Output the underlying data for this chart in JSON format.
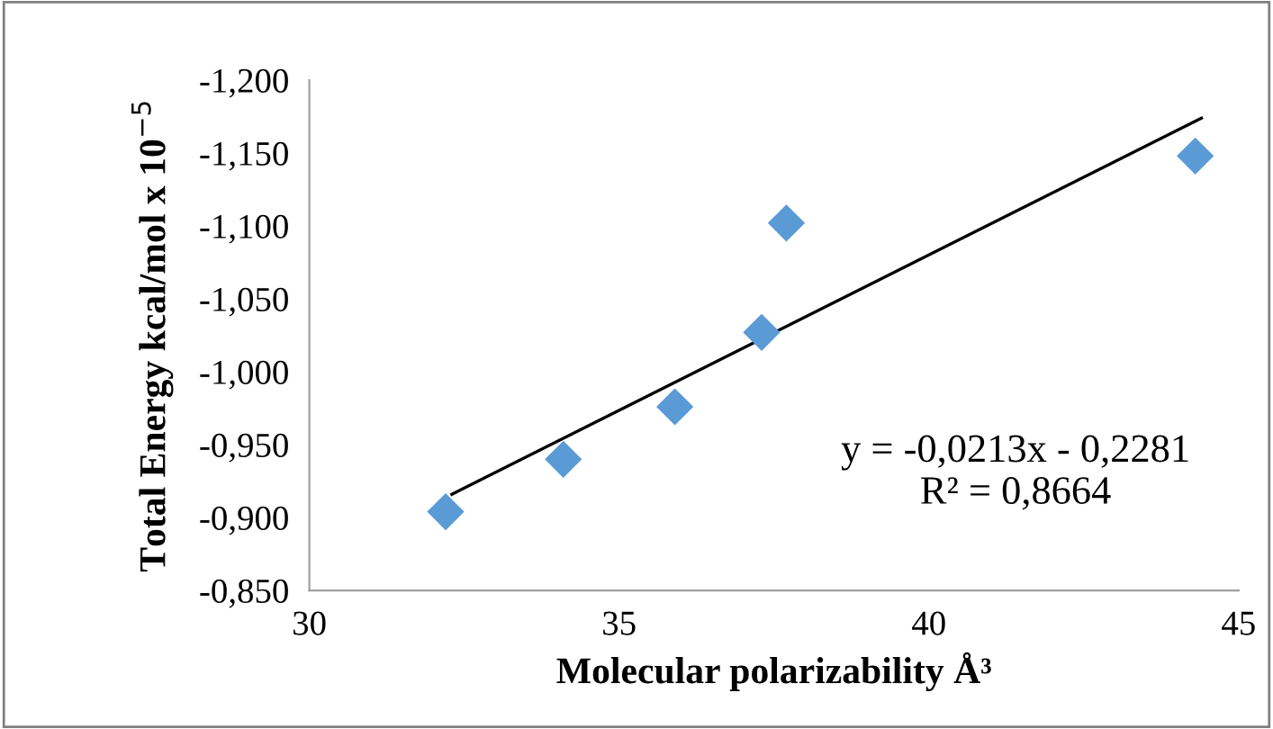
{
  "chart_data": {
    "type": "scatter",
    "xlabel": "Molecular polarizability Å³",
    "ylabel": "Total Energy kcal/mol x 10$^{−5}$",
    "xlim": [
      30,
      45
    ],
    "xticks": [
      30,
      35,
      40,
      45
    ],
    "ylim": [
      -0.85,
      -1.2
    ],
    "yticks": [
      {
        "value": -1.2,
        "label": "-1,200"
      },
      {
        "value": -1.15,
        "label": "-1,150"
      },
      {
        "value": -1.1,
        "label": "-1,100"
      },
      {
        "value": -1.05,
        "label": "-1,050"
      },
      {
        "value": -1.0,
        "label": "-1,000"
      },
      {
        "value": -0.95,
        "label": "-0,950"
      },
      {
        "value": -0.9,
        "label": "-0,900"
      },
      {
        "value": -0.85,
        "label": "-0,850"
      }
    ],
    "grid": false,
    "marker": "diamond",
    "series": [
      {
        "color": "#5b9bd5",
        "x": [
          32.2,
          34.1,
          35.9,
          37.3,
          37.7,
          44.3
        ],
        "values": [
          -0.904,
          -0.94,
          -0.976,
          -1.027,
          -1.102,
          -1.148
        ]
      },
      {
        "type": "line",
        "color": "#000000",
        "marker": "none",
        "x": [
          32.3,
          44.4
        ],
        "values": [
          -0.916,
          -1.174
        ]
      }
    ],
    "annotations": [
      "y = -0,0213x - 0,2281\nR² = 0,8664"
    ]
  }
}
